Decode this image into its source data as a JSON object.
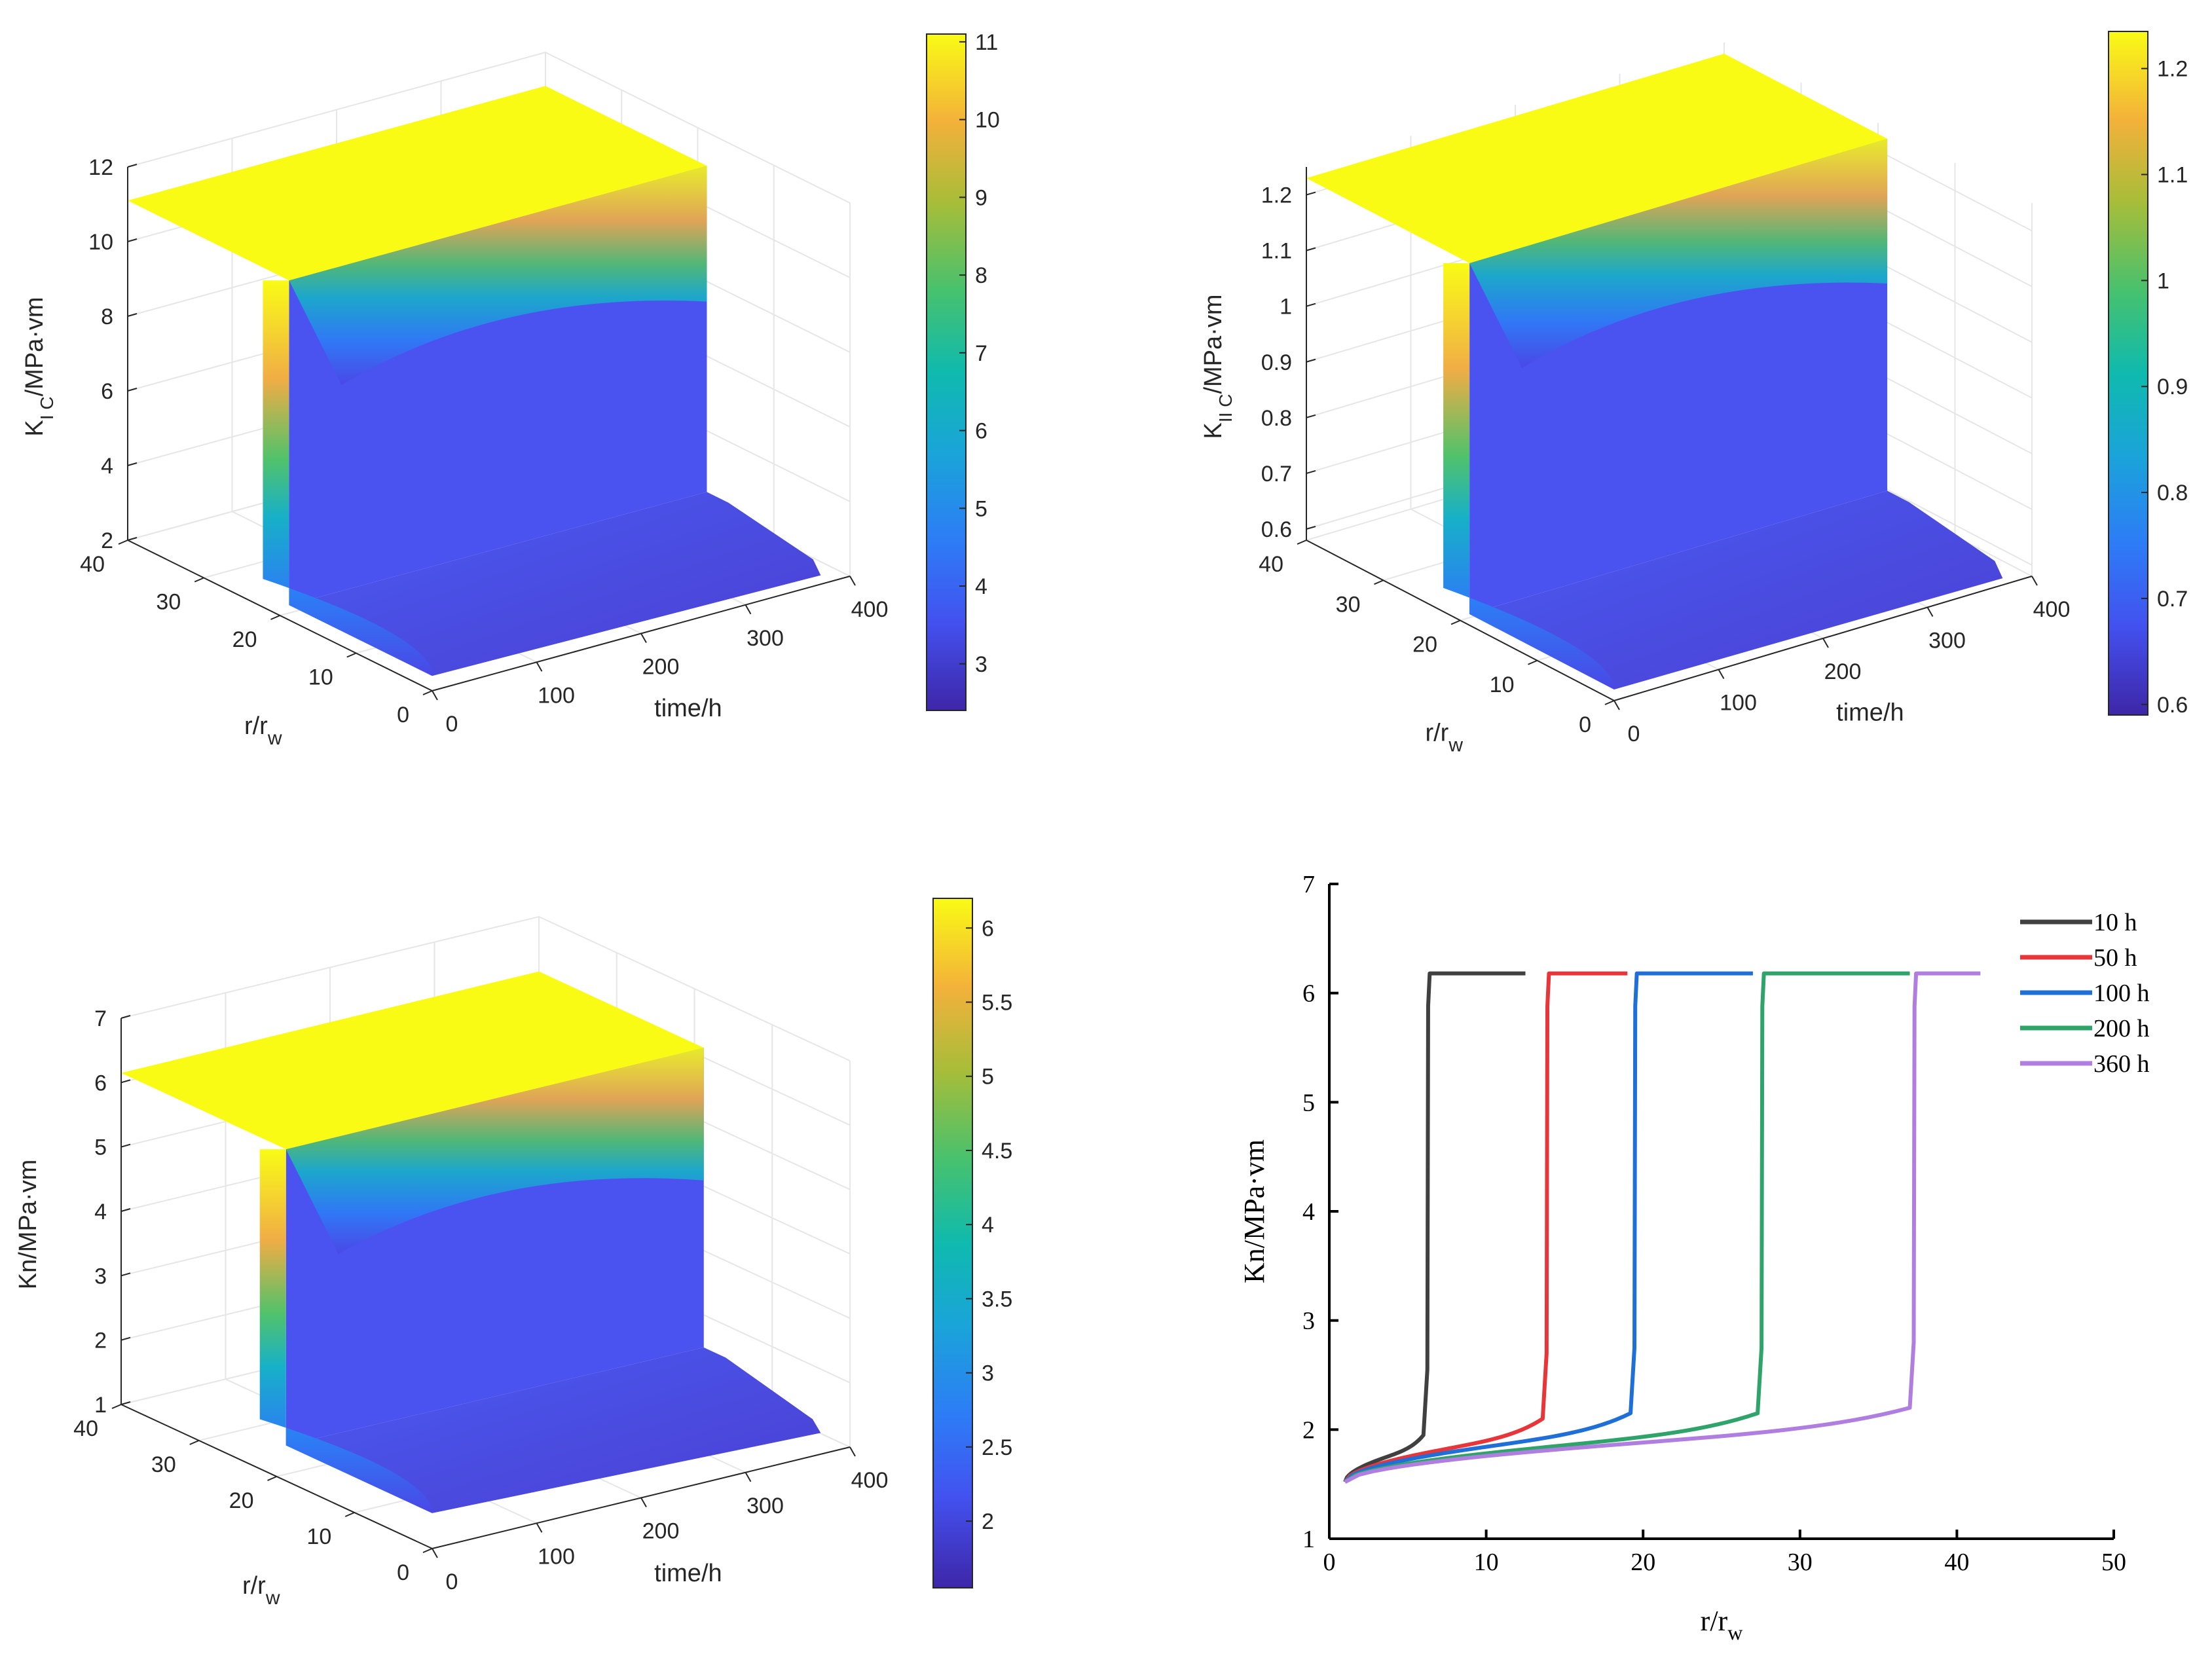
{
  "chart_data": [
    {
      "type": "surface",
      "title": "",
      "xlabel": "r/r",
      "xlabel_sub": "w",
      "ylabel": "time/h",
      "zlabel": "K",
      "zlabel_sub": "I C",
      "zlabel_rest": "/MPa·vm",
      "r_ticks": [
        "0",
        "10",
        "20",
        "30",
        "40"
      ],
      "time_ticks": [
        "0",
        "100",
        "200",
        "300",
        "400"
      ],
      "z_ticks": [
        "2",
        "4",
        "6",
        "8",
        "10",
        "12"
      ],
      "zlim": [
        2,
        12
      ],
      "z_high": 11.1,
      "z_low": 2.4,
      "colorbar_ticks": [
        "3",
        "4",
        "5",
        "6",
        "7",
        "8",
        "9",
        "10",
        "11"
      ],
      "colorbar_range": [
        2.4,
        11.1
      ]
    },
    {
      "type": "surface",
      "title": "",
      "xlabel": "r/r",
      "xlabel_sub": "w",
      "ylabel": "time/h",
      "zlabel": "K",
      "zlabel_sub": "II C",
      "zlabel_rest": "/MPa·vm",
      "r_ticks": [
        "0",
        "10",
        "20",
        "30",
        "40"
      ],
      "time_ticks": [
        "0",
        "100",
        "200",
        "300",
        "400"
      ],
      "z_ticks": [
        "0.6",
        "0.7",
        "0.8",
        "0.9",
        "1",
        "1.1",
        "1.2"
      ],
      "zlim": [
        0.58,
        1.25
      ],
      "z_high": 1.23,
      "z_low": 0.6,
      "colorbar_ticks": [
        "0.6",
        "0.7",
        "0.8",
        "0.9",
        "1",
        "1.1",
        "1.2"
      ],
      "colorbar_range": [
        0.59,
        1.235
      ]
    },
    {
      "type": "surface",
      "title": "",
      "xlabel": "r/r",
      "xlabel_sub": "w",
      "ylabel": "time/h",
      "zlabel": "Kn/MPa·vm",
      "zlabel_sub": "",
      "zlabel_rest": "",
      "r_ticks": [
        "0",
        "10",
        "20",
        "30",
        "40"
      ],
      "time_ticks": [
        "0",
        "100",
        "200",
        "300",
        "400"
      ],
      "z_ticks": [
        "1",
        "2",
        "3",
        "4",
        "5",
        "6",
        "7"
      ],
      "zlim": [
        1,
        7
      ],
      "z_high": 6.15,
      "z_low": 1.55,
      "colorbar_ticks": [
        "2",
        "2.5",
        "3",
        "3.5",
        "4",
        "4.5",
        "5",
        "5.5",
        "6"
      ],
      "colorbar_range": [
        1.55,
        6.2
      ]
    },
    {
      "type": "line",
      "title": "",
      "xlabel": "r/r",
      "xlabel_sub": "w",
      "ylabel": "Kn/MPa·vm",
      "xlim": [
        0,
        50
      ],
      "ylim": [
        1,
        7
      ],
      "x_ticks": [
        "0",
        "10",
        "20",
        "30",
        "40",
        "50"
      ],
      "y_ticks": [
        "1",
        "2",
        "3",
        "4",
        "5",
        "6",
        "7"
      ],
      "series": [
        {
          "name": "10 h",
          "color": "#404040",
          "front": 6.0,
          "y_front": 1.95,
          "x_end": 12.5,
          "y_high": 6.18
        },
        {
          "name": "50 h",
          "color": "#e8353a",
          "front": 13.6,
          "y_front": 2.1,
          "x_end": 19.0,
          "y_high": 6.18
        },
        {
          "name": "100 h",
          "color": "#1f6fd8",
          "front": 19.2,
          "y_front": 2.15,
          "x_end": 27.0,
          "y_high": 6.18
        },
        {
          "name": "200 h",
          "color": "#2ea36a",
          "front": 27.3,
          "y_front": 2.15,
          "x_end": 37.0,
          "y_high": 6.18
        },
        {
          "name": "360 h",
          "color": "#b07ee0",
          "front": 37.0,
          "y_front": 2.2,
          "x_end": 41.5,
          "y_high": 6.18
        }
      ],
      "x_start": 1.0,
      "y_start": 1.52
    }
  ]
}
